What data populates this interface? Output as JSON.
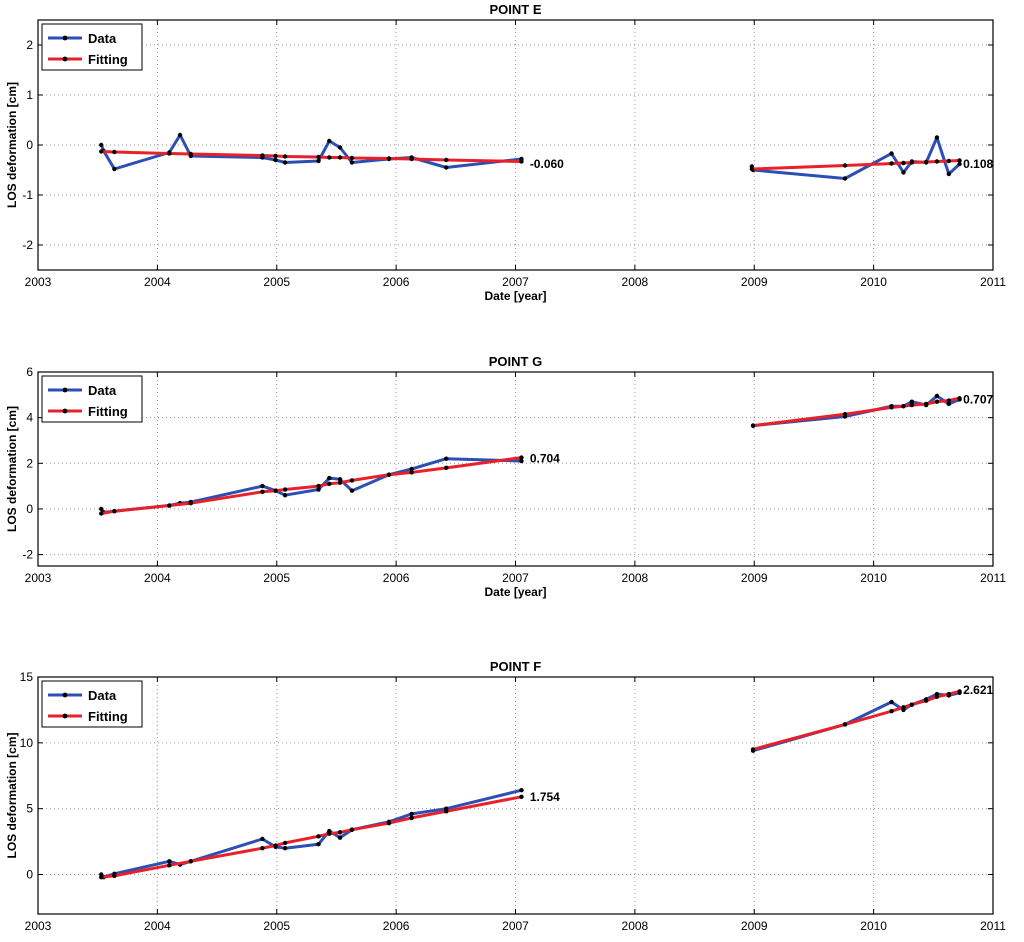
{
  "colors": {
    "data": "#2c4fb5",
    "fitting": "#e8202a",
    "marker": "#000000",
    "grid": "#9a9a9a"
  },
  "chart_data": [
    {
      "type": "line",
      "title": "POINT E",
      "xlabel": "Date [year]",
      "ylabel": "LOS deformation [cm]",
      "xlim": [
        2003,
        2011
      ],
      "ylim": [
        -2.5,
        2.5
      ],
      "xticks": [
        2003,
        2004,
        2005,
        2006,
        2007,
        2008,
        2009,
        2010,
        2011
      ],
      "yticks": [
        -2,
        -1,
        0,
        1,
        2
      ],
      "grid": true,
      "legend": "top-left",
      "legend_entries": [
        "Data",
        "Fitting"
      ],
      "series": [
        {
          "name": "Data",
          "segments": [
            [
              [
                2003.53,
                0.0
              ],
              [
                2003.55,
                -0.12
              ],
              [
                2003.64,
                -0.48
              ],
              [
                2004.1,
                -0.15
              ],
              [
                2004.19,
                0.2
              ],
              [
                2004.28,
                -0.22
              ],
              [
                2004.88,
                -0.25
              ],
              [
                2004.99,
                -0.3
              ],
              [
                2005.07,
                -0.35
              ],
              [
                2005.35,
                -0.32
              ],
              [
                2005.44,
                0.08
              ],
              [
                2005.53,
                -0.05
              ],
              [
                2005.63,
                -0.35
              ],
              [
                2005.94,
                -0.28
              ],
              [
                2006.13,
                -0.25
              ],
              [
                2006.42,
                -0.45
              ],
              [
                2007.05,
                -0.28
              ]
            ],
            [
              [
                2008.98,
                -0.43
              ],
              [
                2008.99,
                -0.5
              ],
              [
                2009.76,
                -0.67
              ],
              [
                2010.15,
                -0.17
              ],
              [
                2010.25,
                -0.55
              ],
              [
                2010.32,
                -0.33
              ],
              [
                2010.44,
                -0.35
              ],
              [
                2010.53,
                0.15
              ],
              [
                2010.63,
                -0.58
              ],
              [
                2010.72,
                -0.38
              ]
            ]
          ]
        },
        {
          "name": "Fitting",
          "segments": [
            [
              [
                2003.53,
                -0.13
              ],
              [
                2003.64,
                -0.14
              ],
              [
                2004.1,
                -0.17
              ],
              [
                2004.28,
                -0.18
              ],
              [
                2004.88,
                -0.21
              ],
              [
                2004.99,
                -0.22
              ],
              [
                2005.07,
                -0.23
              ],
              [
                2005.35,
                -0.24
              ],
              [
                2005.44,
                -0.25
              ],
              [
                2005.53,
                -0.25
              ],
              [
                2005.63,
                -0.26
              ],
              [
                2005.94,
                -0.27
              ],
              [
                2006.13,
                -0.28
              ],
              [
                2006.42,
                -0.3
              ],
              [
                2007.05,
                -0.33
              ]
            ],
            [
              [
                2008.98,
                -0.48
              ],
              [
                2009.76,
                -0.41
              ],
              [
                2010.15,
                -0.37
              ],
              [
                2010.25,
                -0.36
              ],
              [
                2010.32,
                -0.35
              ],
              [
                2010.44,
                -0.34
              ],
              [
                2010.53,
                -0.33
              ],
              [
                2010.63,
                -0.32
              ],
              [
                2010.72,
                -0.31
              ]
            ]
          ]
        }
      ],
      "annotations": [
        {
          "text": "-0.060",
          "x": 2007.12,
          "y": -0.38
        },
        {
          "text": "0.108",
          "x": 2010.75,
          "y": -0.38
        }
      ]
    },
    {
      "type": "line",
      "title": "POINT G",
      "xlabel": "Date [year]",
      "ylabel": "LOS deformation [cm]",
      "xlim": [
        2003,
        2011
      ],
      "ylim": [
        -2.5,
        6
      ],
      "xticks": [
        2003,
        2004,
        2005,
        2006,
        2007,
        2008,
        2009,
        2010,
        2011
      ],
      "yticks": [
        -2,
        0,
        2,
        4,
        6
      ],
      "grid": true,
      "legend": "top-left",
      "legend_entries": [
        "Data",
        "Fitting"
      ],
      "series": [
        {
          "name": "Data",
          "segments": [
            [
              [
                2003.53,
                0.0
              ],
              [
                2003.55,
                -0.15
              ],
              [
                2003.64,
                -0.1
              ],
              [
                2004.1,
                0.15
              ],
              [
                2004.19,
                0.25
              ],
              [
                2004.28,
                0.3
              ],
              [
                2004.88,
                1.0
              ],
              [
                2004.99,
                0.8
              ],
              [
                2005.07,
                0.6
              ],
              [
                2005.35,
                0.85
              ],
              [
                2005.44,
                1.35
              ],
              [
                2005.53,
                1.3
              ],
              [
                2005.63,
                0.8
              ],
              [
                2005.94,
                1.5
              ],
              [
                2006.13,
                1.75
              ],
              [
                2006.42,
                2.2
              ],
              [
                2007.05,
                2.1
              ]
            ],
            [
              [
                2008.99,
                3.65
              ],
              [
                2009.76,
                4.05
              ],
              [
                2010.15,
                4.5
              ],
              [
                2010.25,
                4.5
              ],
              [
                2010.32,
                4.7
              ],
              [
                2010.44,
                4.55
              ],
              [
                2010.53,
                4.95
              ],
              [
                2010.63,
                4.6
              ],
              [
                2010.72,
                4.8
              ]
            ]
          ]
        },
        {
          "name": "Fitting",
          "segments": [
            [
              [
                2003.53,
                -0.2
              ],
              [
                2003.64,
                -0.1
              ],
              [
                2004.1,
                0.15
              ],
              [
                2004.28,
                0.25
              ],
              [
                2004.88,
                0.75
              ],
              [
                2004.99,
                0.8
              ],
              [
                2005.07,
                0.85
              ],
              [
                2005.35,
                1.0
              ],
              [
                2005.44,
                1.1
              ],
              [
                2005.53,
                1.15
              ],
              [
                2005.63,
                1.25
              ],
              [
                2005.94,
                1.5
              ],
              [
                2006.13,
                1.6
              ],
              [
                2006.42,
                1.8
              ],
              [
                2007.05,
                2.25
              ]
            ],
            [
              [
                2008.99,
                3.65
              ],
              [
                2009.76,
                4.15
              ],
              [
                2010.15,
                4.45
              ],
              [
                2010.25,
                4.5
              ],
              [
                2010.32,
                4.55
              ],
              [
                2010.44,
                4.6
              ],
              [
                2010.53,
                4.7
              ],
              [
                2010.63,
                4.75
              ],
              [
                2010.72,
                4.85
              ]
            ]
          ]
        }
      ],
      "annotations": [
        {
          "text": "0.704",
          "x": 2007.12,
          "y": 2.2
        },
        {
          "text": "0.707",
          "x": 2010.75,
          "y": 4.8
        }
      ]
    },
    {
      "type": "line",
      "title": "POINT F",
      "xlabel": "",
      "ylabel": "LOS deformation [cm]",
      "xlim": [
        2003,
        2011
      ],
      "ylim": [
        -3,
        15
      ],
      "xticks": [
        2003,
        2004,
        2005,
        2006,
        2007,
        2008,
        2009,
        2010,
        2011
      ],
      "yticks": [
        0,
        5,
        10,
        15
      ],
      "grid": true,
      "legend": "top-left",
      "legend_entries": [
        "Data",
        "Fitting"
      ],
      "series": [
        {
          "name": "Data",
          "segments": [
            [
              [
                2003.53,
                0.0
              ],
              [
                2003.55,
                -0.2
              ],
              [
                2003.64,
                0.05
              ],
              [
                2004.1,
                1.0
              ],
              [
                2004.19,
                0.75
              ],
              [
                2004.28,
                1.0
              ],
              [
                2004.88,
                2.7
              ],
              [
                2004.99,
                2.1
              ],
              [
                2005.07,
                2.0
              ],
              [
                2005.35,
                2.3
              ],
              [
                2005.44,
                3.3
              ],
              [
                2005.53,
                2.8
              ],
              [
                2005.63,
                3.4
              ],
              [
                2005.94,
                4.0
              ],
              [
                2006.13,
                4.6
              ],
              [
                2006.42,
                5.0
              ],
              [
                2007.05,
                6.4
              ]
            ],
            [
              [
                2008.99,
                9.4
              ],
              [
                2009.76,
                11.4
              ],
              [
                2010.15,
                13.1
              ],
              [
                2010.25,
                12.5
              ],
              [
                2010.32,
                12.9
              ],
              [
                2010.44,
                13.3
              ],
              [
                2010.53,
                13.7
              ],
              [
                2010.63,
                13.6
              ],
              [
                2010.72,
                13.8
              ]
            ]
          ]
        },
        {
          "name": "Fitting",
          "segments": [
            [
              [
                2003.53,
                -0.2
              ],
              [
                2003.64,
                -0.1
              ],
              [
                2004.1,
                0.7
              ],
              [
                2004.28,
                1.0
              ],
              [
                2004.88,
                2.0
              ],
              [
                2004.99,
                2.2
              ],
              [
                2005.07,
                2.4
              ],
              [
                2005.35,
                2.9
              ],
              [
                2005.44,
                3.1
              ],
              [
                2005.53,
                3.2
              ],
              [
                2005.63,
                3.4
              ],
              [
                2005.94,
                3.9
              ],
              [
                2006.13,
                4.3
              ],
              [
                2006.42,
                4.8
              ],
              [
                2007.05,
                5.9
              ]
            ],
            [
              [
                2008.99,
                9.5
              ],
              [
                2009.76,
                11.4
              ],
              [
                2010.15,
                12.4
              ],
              [
                2010.25,
                12.7
              ],
              [
                2010.32,
                12.9
              ],
              [
                2010.44,
                13.2
              ],
              [
                2010.53,
                13.5
              ],
              [
                2010.63,
                13.7
              ],
              [
                2010.72,
                13.9
              ]
            ]
          ]
        }
      ],
      "annotations": [
        {
          "text": "1.754",
          "x": 2007.12,
          "y": 5.9
        },
        {
          "text": "2.621",
          "x": 2010.75,
          "y": 14.0
        }
      ]
    }
  ]
}
